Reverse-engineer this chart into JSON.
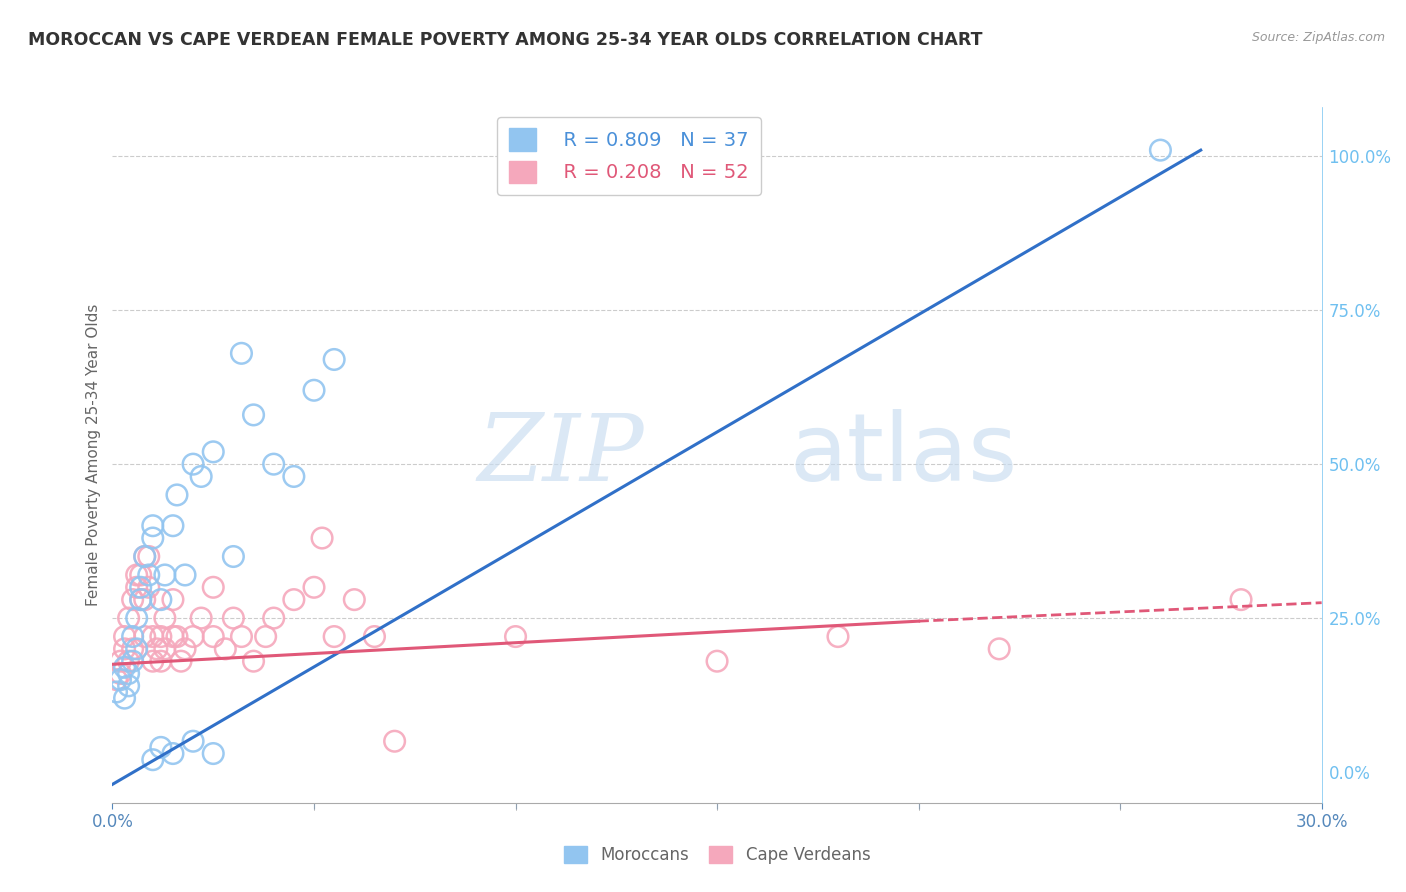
{
  "title": "MOROCCAN VS CAPE VERDEAN FEMALE POVERTY AMONG 25-34 YEAR OLDS CORRELATION CHART",
  "source": "Source: ZipAtlas.com",
  "ylabel_left": "Female Poverty Among 25-34 Year Olds",
  "x_min": 0.0,
  "x_max": 0.3,
  "y_min": -0.05,
  "y_max": 1.08,
  "moroccan_R": 0.809,
  "moroccan_N": 37,
  "capeverdean_R": 0.208,
  "capeverdean_N": 52,
  "moroccan_color": "#92C5F0",
  "capeverdean_color": "#F5A8BC",
  "moroccan_line_color": "#3070C8",
  "capeverdean_line_color": "#E05878",
  "watermark_zip": "ZIP",
  "watermark_atlas": "atlas",
  "background_color": "#ffffff",
  "grid_color": "#cccccc",
  "right_axis_color": "#70C0F0",
  "moroccan_scatter": [
    [
      0.001,
      0.13
    ],
    [
      0.002,
      0.15
    ],
    [
      0.003,
      0.12
    ],
    [
      0.003,
      0.17
    ],
    [
      0.004,
      0.14
    ],
    [
      0.004,
      0.16
    ],
    [
      0.005,
      0.18
    ],
    [
      0.005,
      0.22
    ],
    [
      0.006,
      0.2
    ],
    [
      0.006,
      0.25
    ],
    [
      0.007,
      0.3
    ],
    [
      0.007,
      0.28
    ],
    [
      0.008,
      0.35
    ],
    [
      0.009,
      0.32
    ],
    [
      0.01,
      0.38
    ],
    [
      0.01,
      0.4
    ],
    [
      0.012,
      0.28
    ],
    [
      0.013,
      0.32
    ],
    [
      0.015,
      0.4
    ],
    [
      0.016,
      0.45
    ],
    [
      0.018,
      0.32
    ],
    [
      0.02,
      0.5
    ],
    [
      0.022,
      0.48
    ],
    [
      0.025,
      0.52
    ],
    [
      0.03,
      0.35
    ],
    [
      0.032,
      0.68
    ],
    [
      0.035,
      0.58
    ],
    [
      0.04,
      0.5
    ],
    [
      0.045,
      0.48
    ],
    [
      0.05,
      0.62
    ],
    [
      0.055,
      0.67
    ],
    [
      0.01,
      0.02
    ],
    [
      0.012,
      0.04
    ],
    [
      0.015,
      0.03
    ],
    [
      0.02,
      0.05
    ],
    [
      0.025,
      0.03
    ],
    [
      0.26,
      1.01
    ]
  ],
  "capeverdean_scatter": [
    [
      0.001,
      0.15
    ],
    [
      0.002,
      0.16
    ],
    [
      0.002,
      0.18
    ],
    [
      0.003,
      0.2
    ],
    [
      0.003,
      0.22
    ],
    [
      0.004,
      0.18
    ],
    [
      0.004,
      0.25
    ],
    [
      0.005,
      0.2
    ],
    [
      0.005,
      0.28
    ],
    [
      0.006,
      0.3
    ],
    [
      0.006,
      0.32
    ],
    [
      0.007,
      0.28
    ],
    [
      0.007,
      0.32
    ],
    [
      0.008,
      0.22
    ],
    [
      0.008,
      0.28
    ],
    [
      0.008,
      0.35
    ],
    [
      0.009,
      0.3
    ],
    [
      0.009,
      0.35
    ],
    [
      0.01,
      0.18
    ],
    [
      0.01,
      0.22
    ],
    [
      0.011,
      0.2
    ],
    [
      0.012,
      0.18
    ],
    [
      0.012,
      0.22
    ],
    [
      0.013,
      0.2
    ],
    [
      0.013,
      0.25
    ],
    [
      0.015,
      0.22
    ],
    [
      0.015,
      0.28
    ],
    [
      0.016,
      0.22
    ],
    [
      0.017,
      0.18
    ],
    [
      0.018,
      0.2
    ],
    [
      0.02,
      0.22
    ],
    [
      0.022,
      0.25
    ],
    [
      0.025,
      0.22
    ],
    [
      0.025,
      0.3
    ],
    [
      0.028,
      0.2
    ],
    [
      0.03,
      0.25
    ],
    [
      0.032,
      0.22
    ],
    [
      0.035,
      0.18
    ],
    [
      0.038,
      0.22
    ],
    [
      0.04,
      0.25
    ],
    [
      0.045,
      0.28
    ],
    [
      0.05,
      0.3
    ],
    [
      0.052,
      0.38
    ],
    [
      0.055,
      0.22
    ],
    [
      0.06,
      0.28
    ],
    [
      0.065,
      0.22
    ],
    [
      0.07,
      0.05
    ],
    [
      0.1,
      0.22
    ],
    [
      0.15,
      0.18
    ],
    [
      0.18,
      0.22
    ],
    [
      0.22,
      0.2
    ],
    [
      0.28,
      0.28
    ]
  ],
  "moroccan_line": [
    [
      0.0,
      -0.02
    ],
    [
      0.27,
      1.01
    ]
  ],
  "capeverdean_line_solid": [
    [
      0.0,
      0.175
    ],
    [
      0.2,
      0.245
    ]
  ],
  "capeverdean_line_dashed": [
    [
      0.2,
      0.245
    ],
    [
      0.3,
      0.275
    ]
  ],
  "right_yticks": [
    0.0,
    0.25,
    0.5,
    0.75,
    1.0
  ],
  "right_yticklabels": [
    "0.0%",
    "25.0%",
    "50.0%",
    "75.0%",
    "100.0%"
  ],
  "xticks": [
    0.0,
    0.05,
    0.1,
    0.15,
    0.2,
    0.25,
    0.3
  ],
  "xticklabels": [
    "0.0%",
    "",
    "",
    "",
    "",
    "",
    "30.0%"
  ]
}
